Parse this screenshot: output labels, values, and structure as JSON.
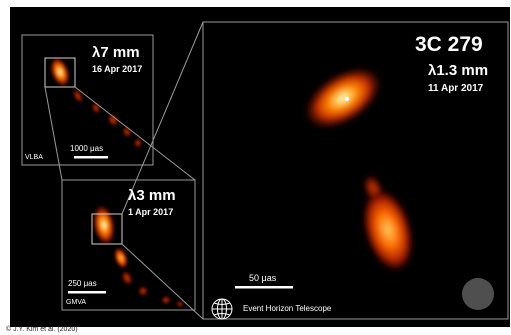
{
  "main_panel": {
    "source": "3C 279",
    "wavelength": "λ1.3 mm",
    "date": "11 Apr 2017",
    "scalebar": "50 μas",
    "logo_text": "Event Horizon Telescope"
  },
  "panel_7mm": {
    "wavelength": "λ7 mm",
    "date": "16 Apr 2017",
    "array": "VLBA",
    "scalebar": "1000 μas"
  },
  "panel_3mm": {
    "wavelength": "λ3 mm",
    "date": "1 Apr 2017",
    "array": "GMVA",
    "scalebar": "250 μas"
  },
  "credit": "© J.Y. Kim et al. (2020)",
  "colors": {
    "background": "#000000",
    "hot": "#ffffff",
    "mid": "#ff7a00",
    "cool": "#a31a00",
    "frame": "#9a9a9a"
  }
}
